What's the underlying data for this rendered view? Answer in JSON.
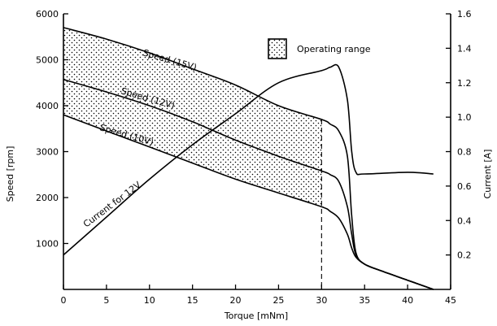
{
  "chart_data": {
    "type": "line",
    "title": "",
    "xlabel": "Torque [mNm]",
    "ylabel": "Speed [rpm]",
    "ylabel_right": "Current [A]",
    "xlim": [
      0,
      45
    ],
    "ylim": [
      0,
      6000
    ],
    "ylim_right": [
      0,
      1.6
    ],
    "grid": false,
    "x_ticks": [
      "0",
      "5",
      "10",
      "15",
      "20",
      "25",
      "30",
      "35",
      "40",
      "45"
    ],
    "y_ticks": [
      "1000",
      "2000",
      "3000",
      "4000",
      "5000",
      "6000"
    ],
    "y_right_ticks": [
      "0.2",
      "0.4",
      "0.6",
      "0.8",
      "1.0",
      "1.2",
      "1.4",
      "1.6"
    ],
    "legend": {
      "label": "Operating range",
      "position": "top-right"
    },
    "series": [
      {
        "name": "Speed (15V)",
        "axis": "left",
        "x": [
          0,
          5,
          10,
          15,
          20,
          25,
          30,
          31,
          32,
          33,
          33.5,
          34,
          35,
          37,
          40,
          43
        ],
        "y": [
          5700,
          5450,
          5150,
          4800,
          4450,
          4000,
          3700,
          3600,
          3450,
          2900,
          1600,
          800,
          550,
          400,
          200,
          0
        ]
      },
      {
        "name": "Speed (12V)",
        "axis": "left",
        "x": [
          0,
          5,
          10,
          15,
          20,
          25,
          30,
          31,
          32,
          33,
          33.5,
          34,
          35,
          37,
          40,
          43
        ],
        "y": [
          4570,
          4300,
          4000,
          3650,
          3250,
          2900,
          2580,
          2500,
          2350,
          1800,
          1200,
          750,
          550,
          400,
          200,
          0
        ]
      },
      {
        "name": "Speed (10V)",
        "axis": "left",
        "x": [
          0,
          5,
          10,
          15,
          20,
          25,
          30,
          31,
          32,
          33,
          33.5,
          34,
          35,
          37,
          40,
          43
        ],
        "y": [
          3800,
          3450,
          3100,
          2750,
          2400,
          2100,
          1800,
          1700,
          1550,
          1200,
          900,
          700,
          550,
          400,
          200,
          0
        ]
      },
      {
        "name": "Current for 12V",
        "axis": "right",
        "x": [
          0,
          5,
          10,
          15,
          20,
          25,
          30,
          31,
          32,
          33,
          33.5,
          34,
          35,
          40,
          43
        ],
        "y": [
          0.2,
          0.42,
          0.64,
          0.84,
          1.02,
          1.2,
          1.27,
          1.29,
          1.29,
          1.1,
          0.8,
          0.68,
          0.67,
          0.68,
          0.67
        ]
      }
    ],
    "operating_range": {
      "x_max": 30,
      "dashed_line_x": 30,
      "upper": "Speed (15V)",
      "lower": "Speed (10V)"
    }
  }
}
